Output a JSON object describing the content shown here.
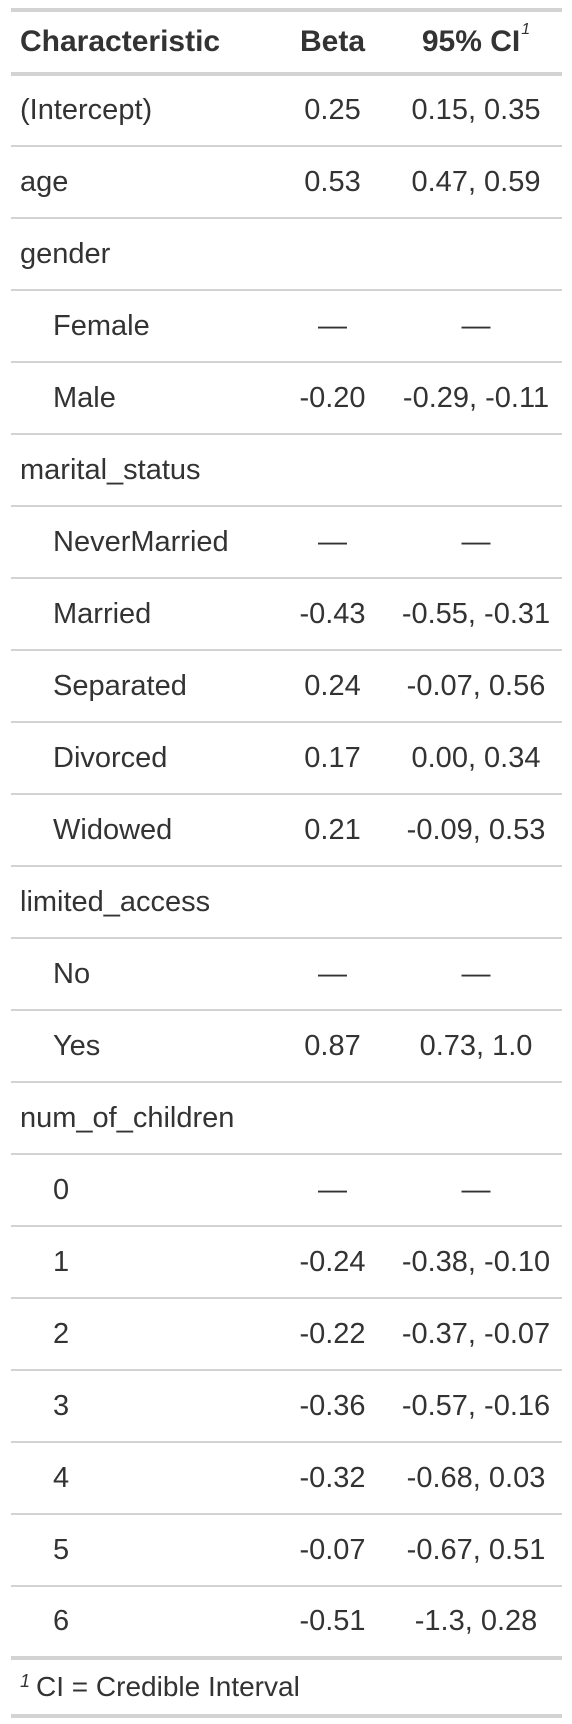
{
  "table": {
    "headers": {
      "characteristic": "Characteristic",
      "beta": "Beta",
      "ci": "95% CI",
      "ci_footnote_mark": "1"
    },
    "rows": [
      {
        "label": "(Intercept)",
        "beta": "0.25",
        "ci": "0.15, 0.35",
        "indent": false
      },
      {
        "label": "age",
        "beta": "0.53",
        "ci": "0.47, 0.59",
        "indent": false
      },
      {
        "label": "gender",
        "beta": "",
        "ci": "",
        "indent": false
      },
      {
        "label": "Female",
        "beta": "—",
        "ci": "—",
        "indent": true
      },
      {
        "label": "Male",
        "beta": "-0.20",
        "ci": "-0.29, -0.11",
        "indent": true
      },
      {
        "label": "marital_status",
        "beta": "",
        "ci": "",
        "indent": false
      },
      {
        "label": "NeverMarried",
        "beta": "—",
        "ci": "—",
        "indent": true
      },
      {
        "label": "Married",
        "beta": "-0.43",
        "ci": "-0.55, -0.31",
        "indent": true
      },
      {
        "label": "Separated",
        "beta": "0.24",
        "ci": "-0.07, 0.56",
        "indent": true
      },
      {
        "label": "Divorced",
        "beta": "0.17",
        "ci": "0.00, 0.34",
        "indent": true
      },
      {
        "label": "Widowed",
        "beta": "0.21",
        "ci": "-0.09, 0.53",
        "indent": true
      },
      {
        "label": "limited_access",
        "beta": "",
        "ci": "",
        "indent": false
      },
      {
        "label": "No",
        "beta": "—",
        "ci": "—",
        "indent": true
      },
      {
        "label": "Yes",
        "beta": "0.87",
        "ci": "0.73, 1.0",
        "indent": true
      },
      {
        "label": "num_of_children",
        "beta": "",
        "ci": "",
        "indent": false
      },
      {
        "label": "0",
        "beta": "—",
        "ci": "—",
        "indent": true
      },
      {
        "label": "1",
        "beta": "-0.24",
        "ci": "-0.38, -0.10",
        "indent": true
      },
      {
        "label": "2",
        "beta": "-0.22",
        "ci": "-0.37, -0.07",
        "indent": true
      },
      {
        "label": "3",
        "beta": "-0.36",
        "ci": "-0.57, -0.16",
        "indent": true
      },
      {
        "label": "4",
        "beta": "-0.32",
        "ci": "-0.68, 0.03",
        "indent": true
      },
      {
        "label": "5",
        "beta": "-0.07",
        "ci": "-0.67, 0.51",
        "indent": true
      },
      {
        "label": "6",
        "beta": "-0.51",
        "ci": "-1.3, 0.28",
        "indent": true
      }
    ],
    "footnote": {
      "mark": "1",
      "text": "CI = Credible Interval"
    }
  }
}
